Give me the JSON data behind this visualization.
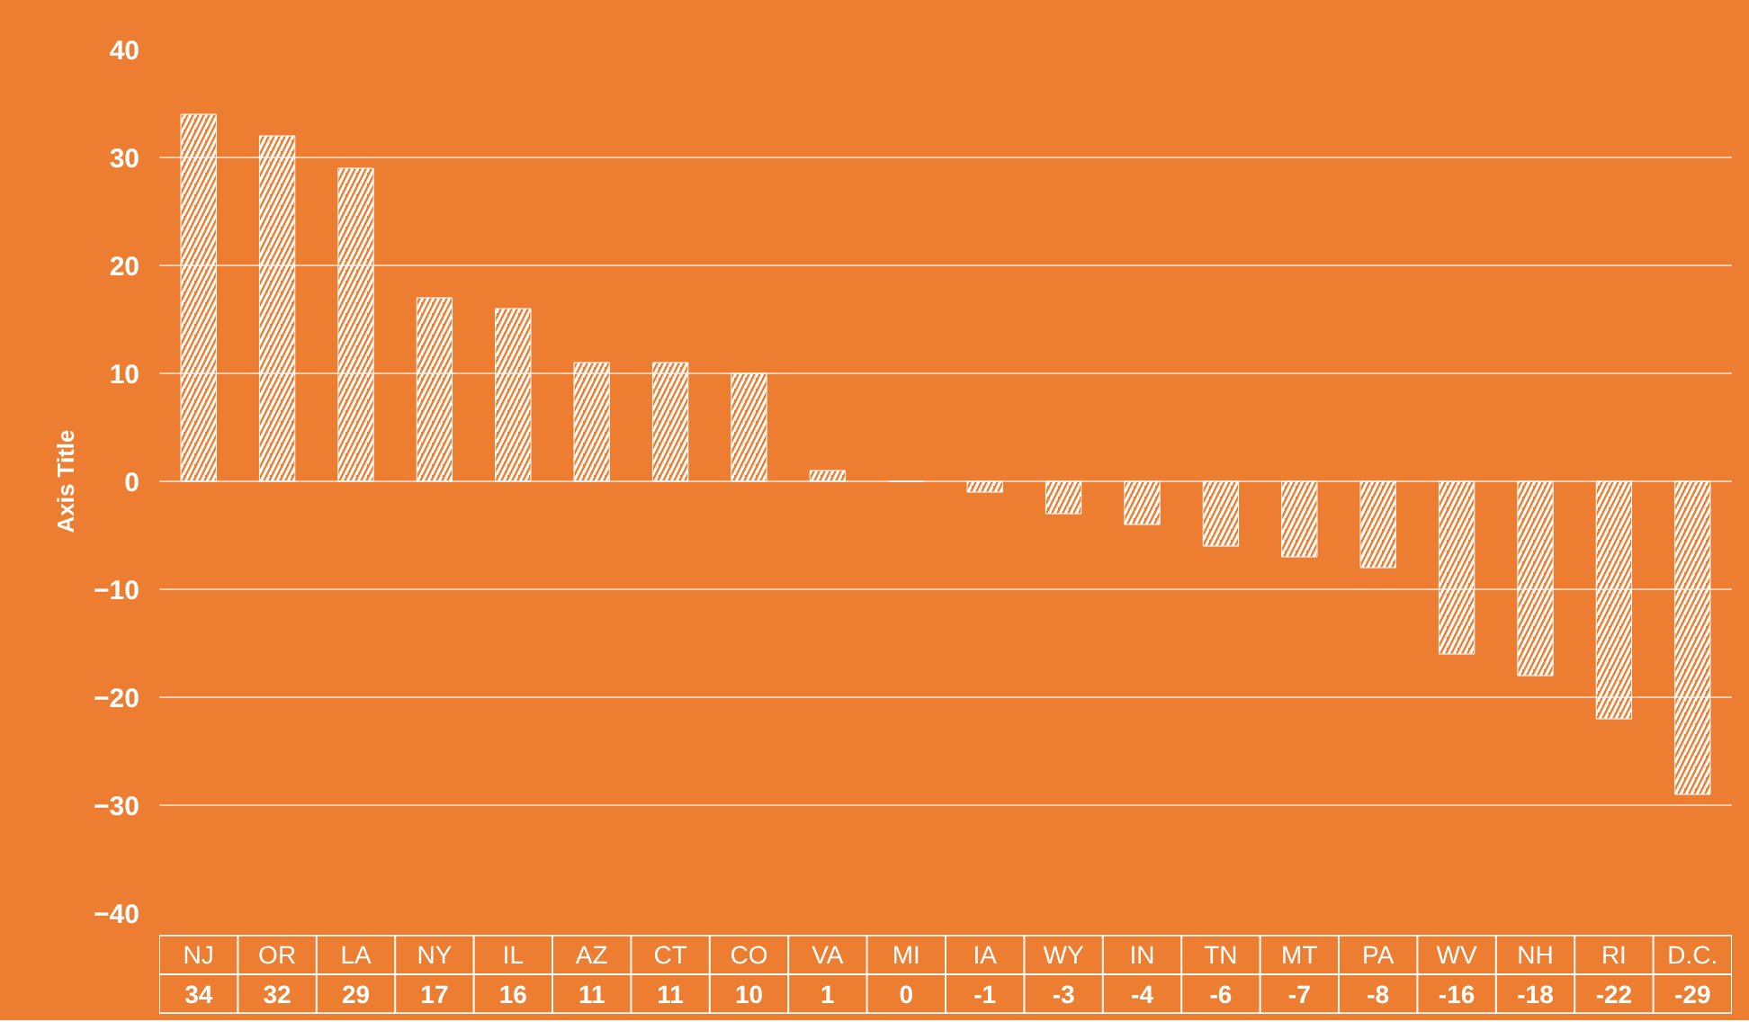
{
  "chart_data": {
    "type": "bar",
    "ylabel": "Axis Title",
    "categories": [
      "NJ",
      "OR",
      "LA",
      "NY",
      "IL",
      "AZ",
      "CT",
      "CO",
      "VA",
      "MI",
      "IA",
      "WY",
      "IN",
      "TN",
      "MT",
      "PA",
      "WV",
      "NH",
      "RI",
      "D.C."
    ],
    "values": [
      34,
      32,
      29,
      17,
      16,
      11,
      11,
      10,
      1,
      0,
      -1,
      -3,
      -4,
      -6,
      -7,
      -8,
      -16,
      -18,
      -22,
      -29
    ],
    "color": "#ffffff",
    "ylim": [
      -40,
      40
    ],
    "yticks": [
      -40,
      -30,
      -20,
      -10,
      0,
      10,
      20,
      30,
      40
    ],
    "grid": "y",
    "data_labels": true
  }
}
